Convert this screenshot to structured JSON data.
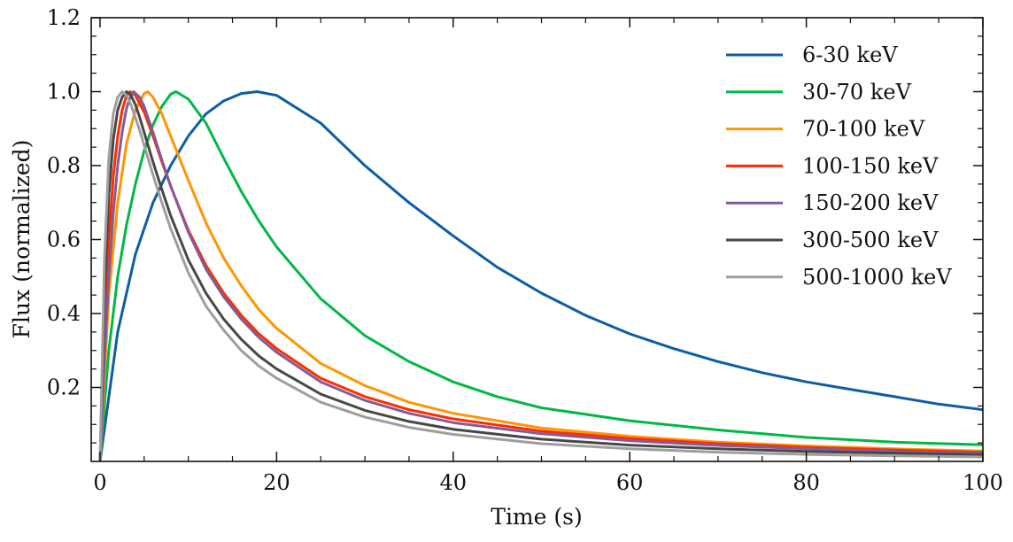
{
  "chart_data": {
    "type": "line",
    "title": "",
    "xlabel": "Time (s)",
    "ylabel": "Flux (normalized)",
    "xlim": [
      -1,
      100
    ],
    "ylim": [
      0,
      1.2
    ],
    "xticks": [
      0,
      20,
      40,
      60,
      80,
      100
    ],
    "xtick_labels": [
      "0",
      "20",
      "40",
      "60",
      "80",
      "100"
    ],
    "yticks": [
      0.2,
      0.4,
      0.6,
      0.8,
      1.0,
      1.2
    ],
    "ytick_labels": [
      "0.2",
      "0.4",
      "0.6",
      "0.8",
      "1.0",
      "1.2"
    ],
    "legend_position": "top-right",
    "series": [
      {
        "name": "6-30 keV",
        "color": "#0C5DA5",
        "x": [
          0,
          2,
          4,
          6,
          8,
          10,
          12,
          14,
          16,
          17.8,
          20,
          25,
          30,
          35,
          40,
          45,
          50,
          55,
          60,
          65,
          70,
          75,
          80,
          85,
          90,
          95,
          100
        ],
        "y": [
          0.0,
          0.35,
          0.56,
          0.7,
          0.8,
          0.88,
          0.94,
          0.975,
          0.995,
          1.0,
          0.99,
          0.915,
          0.8,
          0.7,
          0.61,
          0.525,
          0.455,
          0.395,
          0.345,
          0.305,
          0.27,
          0.24,
          0.215,
          0.195,
          0.175,
          0.155,
          0.14
        ]
      },
      {
        "name": "30-70 keV",
        "color": "#00B945",
        "x": [
          0,
          1,
          2,
          3,
          4,
          5,
          6,
          7,
          8,
          8.6,
          10,
          12,
          14,
          16,
          18,
          20,
          25,
          30,
          35,
          40,
          45,
          50,
          60,
          70,
          80,
          90,
          100
        ],
        "y": [
          0.0,
          0.3,
          0.5,
          0.64,
          0.75,
          0.84,
          0.91,
          0.96,
          0.993,
          1.0,
          0.98,
          0.915,
          0.82,
          0.73,
          0.65,
          0.58,
          0.44,
          0.34,
          0.27,
          0.215,
          0.175,
          0.145,
          0.11,
          0.085,
          0.065,
          0.052,
          0.045
        ]
      },
      {
        "name": "70-100 keV",
        "color": "#FF9500",
        "x": [
          0,
          1,
          2,
          3,
          4,
          5,
          5.4,
          6,
          7,
          8,
          10,
          12,
          14,
          16,
          18,
          20,
          25,
          30,
          35,
          40,
          50,
          60,
          70,
          80,
          90,
          100
        ],
        "y": [
          0.0,
          0.45,
          0.7,
          0.86,
          0.95,
          0.995,
          1.0,
          0.985,
          0.94,
          0.88,
          0.76,
          0.645,
          0.55,
          0.475,
          0.41,
          0.36,
          0.265,
          0.205,
          0.16,
          0.13,
          0.09,
          0.068,
          0.052,
          0.042,
          0.034,
          0.028
        ]
      },
      {
        "name": "100-150 keV",
        "color": "#FF2C00",
        "x": [
          0,
          0.5,
          1,
          1.5,
          2,
          2.5,
          3,
          3.4,
          4,
          5,
          6,
          7,
          8,
          10,
          12,
          14,
          16,
          18,
          20,
          25,
          30,
          35,
          40,
          50,
          60,
          70,
          80,
          90,
          100
        ],
        "y": [
          0.0,
          0.35,
          0.6,
          0.77,
          0.88,
          0.95,
          0.99,
          1.0,
          0.99,
          0.945,
          0.88,
          0.81,
          0.745,
          0.625,
          0.53,
          0.455,
          0.395,
          0.345,
          0.305,
          0.225,
          0.175,
          0.14,
          0.115,
          0.082,
          0.062,
          0.048,
          0.038,
          0.031,
          0.025
        ]
      },
      {
        "name": "150-200 keV",
        "color": "#845B97",
        "x": [
          0,
          0.5,
          1,
          1.5,
          2,
          2.5,
          3,
          3.5,
          3.8,
          4.5,
          5,
          6,
          7,
          8,
          10,
          12,
          14,
          16,
          18,
          20,
          25,
          30,
          35,
          40,
          50,
          60,
          70,
          80,
          90,
          100
        ],
        "y": [
          0.0,
          0.28,
          0.5,
          0.67,
          0.8,
          0.89,
          0.955,
          0.99,
          1.0,
          0.985,
          0.96,
          0.89,
          0.815,
          0.745,
          0.62,
          0.52,
          0.445,
          0.385,
          0.335,
          0.295,
          0.215,
          0.165,
          0.13,
          0.105,
          0.075,
          0.056,
          0.043,
          0.034,
          0.027,
          0.022
        ]
      },
      {
        "name": "300-500 keV",
        "color": "#474747",
        "x": [
          0,
          0.5,
          1,
          1.5,
          2,
          2.5,
          3,
          3.5,
          4,
          4.5,
          5,
          6,
          7,
          8,
          10,
          12,
          14,
          16,
          18,
          20,
          25,
          30,
          35,
          40,
          50,
          60,
          70,
          80,
          90,
          100
        ],
        "y": [
          0.0,
          0.45,
          0.72,
          0.87,
          0.95,
          0.985,
          1.0,
          0.99,
          0.965,
          0.93,
          0.89,
          0.81,
          0.735,
          0.665,
          0.545,
          0.455,
          0.385,
          0.33,
          0.285,
          0.25,
          0.182,
          0.138,
          0.108,
          0.087,
          0.06,
          0.044,
          0.034,
          0.027,
          0.022,
          0.018
        ]
      },
      {
        "name": "500-1000 keV",
        "color": "#9E9E9E",
        "x": [
          0,
          0.5,
          1,
          1.5,
          2,
          2.5,
          3,
          3.5,
          4,
          4.5,
          5,
          6,
          7,
          8,
          10,
          12,
          14,
          16,
          18,
          20,
          25,
          30,
          35,
          40,
          50,
          60,
          70,
          80,
          90,
          100
        ],
        "y": [
          0.0,
          0.55,
          0.82,
          0.94,
          0.985,
          1.0,
          0.99,
          0.965,
          0.93,
          0.895,
          0.855,
          0.775,
          0.7,
          0.63,
          0.51,
          0.42,
          0.355,
          0.3,
          0.258,
          0.225,
          0.16,
          0.12,
          0.092,
          0.073,
          0.048,
          0.034,
          0.025,
          0.019,
          0.015,
          0.012
        ]
      }
    ]
  }
}
